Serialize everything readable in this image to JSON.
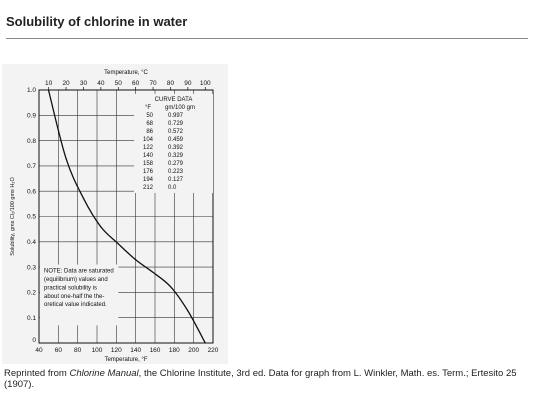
{
  "page": {
    "title": "Solubility of chlorine in water"
  },
  "caption": {
    "prefix": "Reprinted from ",
    "source_title": "Chlorine Manual",
    "suffix": ", the Chlorine Institute, 3rd ed. Data for graph from L. Winkler, Math. es. Term.; Ertesito 25 (1907)."
  },
  "chart_data": {
    "type": "line",
    "title": "",
    "xlabel": "Temperature, °F",
    "x2label": "Temperature, °C",
    "ylabel": "Solubility, gms Cl₂/100 gms H₂O",
    "xlim": [
      40,
      220
    ],
    "ylim": [
      0,
      1.0
    ],
    "x_ticks": [
      40,
      60,
      80,
      100,
      120,
      140,
      160,
      180,
      200,
      220
    ],
    "x2_ticks": [
      10,
      20,
      30,
      40,
      50,
      60,
      70,
      80,
      90,
      100
    ],
    "y_ticks": [
      0.1,
      0.2,
      0.3,
      0.4,
      0.5,
      0.6,
      0.7,
      0.8,
      0.9,
      1.0
    ],
    "y_tick_labels": [
      "0.1",
      "0.2",
      "0.3",
      "0.4",
      "0.5",
      "0.6",
      "0.7",
      "0.8",
      "0.9",
      "1.0"
    ],
    "origin_label": "0",
    "grid": true,
    "series": [
      {
        "x": [
          50,
          68,
          86,
          104,
          122,
          140,
          158,
          176,
          194,
          212
        ],
        "y": [
          0.997,
          0.729,
          0.572,
          0.459,
          0.392,
          0.329,
          0.279,
          0.223,
          0.127,
          0.0
        ]
      }
    ],
    "table": {
      "title": "CURVE DATA",
      "headers": [
        "°F",
        "gm/100 gm"
      ],
      "rows": [
        [
          "50",
          "0.997"
        ],
        [
          "68",
          "0.729"
        ],
        [
          "86",
          "0.572"
        ],
        [
          "104",
          "0.459"
        ],
        [
          "122",
          "0.392"
        ],
        [
          "140",
          "0.329"
        ],
        [
          "158",
          "0.279"
        ],
        [
          "176",
          "0.223"
        ],
        [
          "194",
          "0.127"
        ],
        [
          "212",
          "0.0"
        ]
      ]
    },
    "note": [
      "NOTE: Data are saturated",
      "(equilibrium) values and",
      "practical solubility is",
      "about one-half the the-",
      "oretical value indicated."
    ]
  }
}
